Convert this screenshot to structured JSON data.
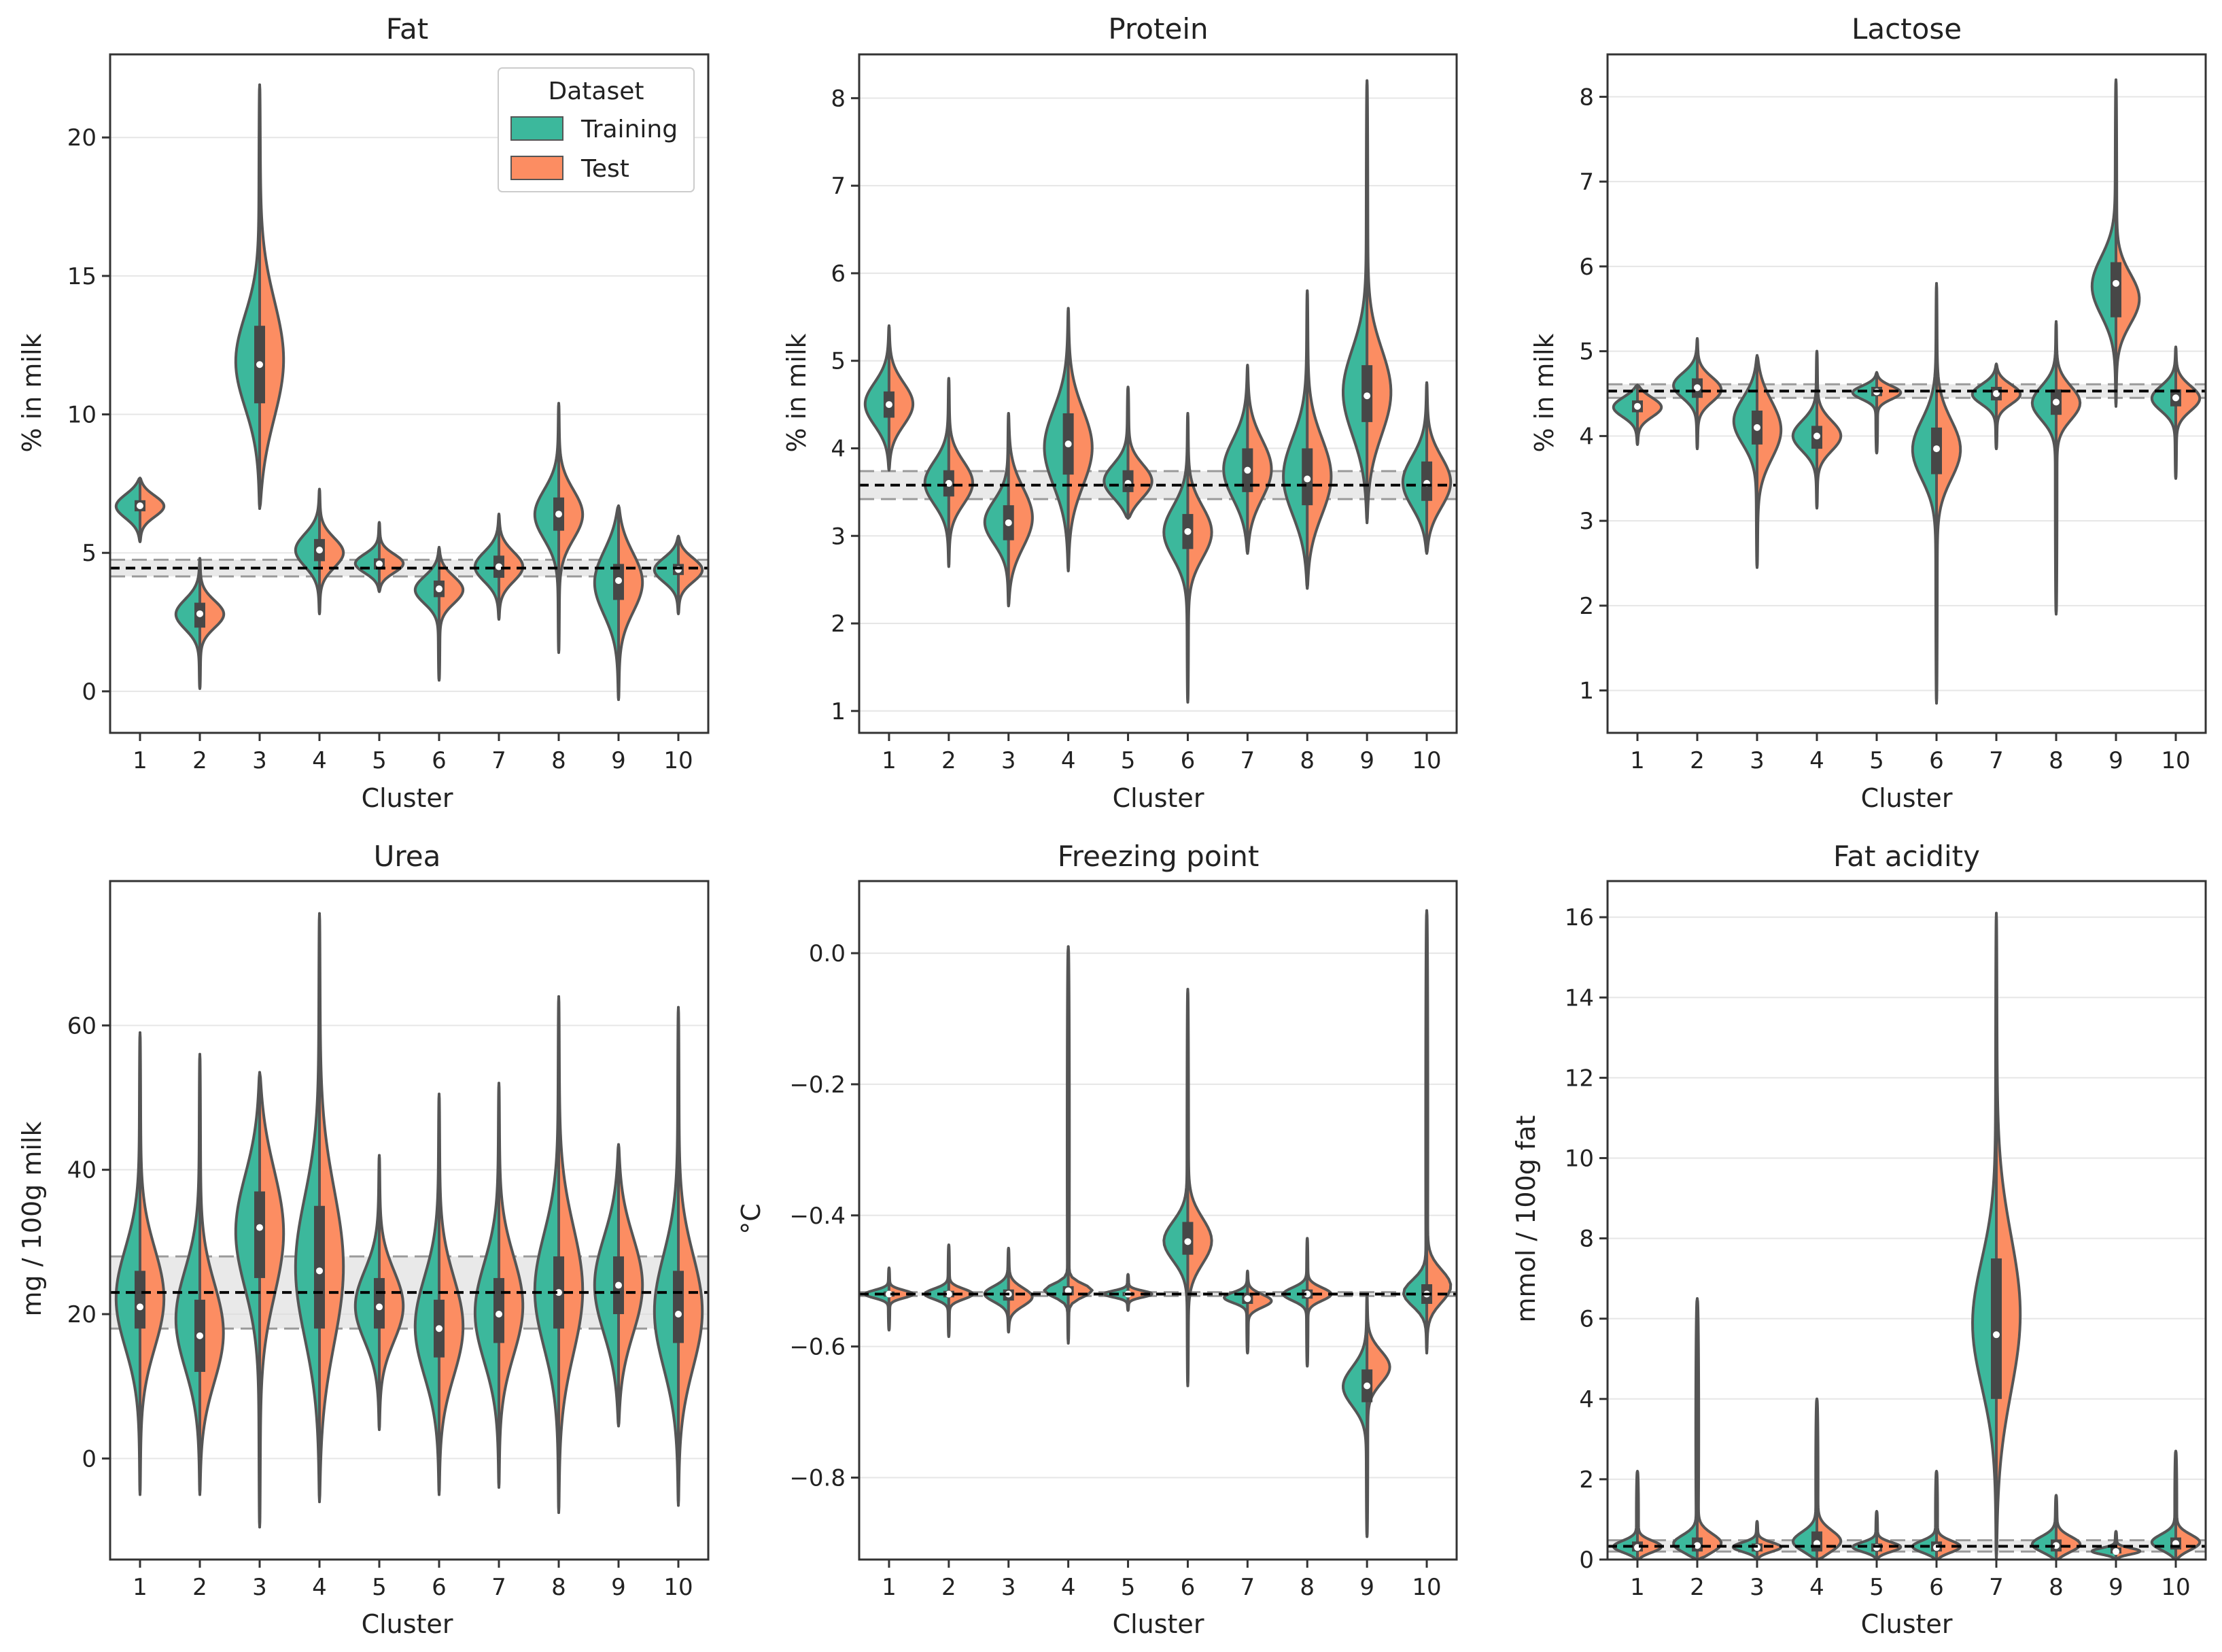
{
  "colors": {
    "training": "#3cb89c",
    "test": "#fc8d62",
    "outline": "#555555",
    "box": "#474747",
    "median": "#ffffff",
    "band": "#dddddd",
    "refline": "#000000",
    "grid": "#e6e6e6"
  },
  "legend": {
    "title": "Dataset",
    "entries": [
      "Training",
      "Test"
    ],
    "placement": "upper-right of first panel"
  },
  "chart_data": [
    {
      "type": "violin",
      "title": "Fat",
      "xlabel": "Cluster",
      "ylabel": "% in milk",
      "ylim": [
        -1.5,
        23
      ],
      "yticks": [
        0,
        5,
        10,
        15,
        20
      ],
      "yticklabels": [
        "0",
        "5",
        "10",
        "15",
        "20"
      ],
      "categories": [
        "1",
        "2",
        "3",
        "4",
        "5",
        "6",
        "7",
        "8",
        "9",
        "10"
      ],
      "reference": {
        "mean": 4.45,
        "low": 4.15,
        "high": 4.75
      },
      "clusters": [
        {
          "min": 5.4,
          "max": 7.7,
          "train_center": 6.7,
          "train_width": 0.45,
          "test_center": 6.7,
          "test_width": 0.4,
          "q1": 6.5,
          "median": 6.7,
          "q3": 6.9
        },
        {
          "min": 0.1,
          "max": 4.8,
          "train_center": 2.8,
          "train_width": 0.55,
          "test_center": 2.8,
          "test_width": 0.5,
          "q1": 2.3,
          "median": 2.8,
          "q3": 3.2
        },
        {
          "min": 6.6,
          "max": 21.9,
          "train_center": 11.8,
          "train_width": 1.7,
          "test_center": 11.8,
          "test_width": 2.2,
          "q1": 10.4,
          "median": 11.8,
          "q3": 13.2
        },
        {
          "min": 2.8,
          "max": 7.3,
          "train_center": 5.1,
          "train_width": 0.6,
          "test_center": 5.0,
          "test_width": 0.55,
          "q1": 4.7,
          "median": 5.1,
          "q3": 5.5
        },
        {
          "min": 3.6,
          "max": 6.1,
          "train_center": 4.6,
          "train_width": 0.35,
          "test_center": 4.6,
          "test_width": 0.35,
          "q1": 4.4,
          "median": 4.6,
          "q3": 4.8
        },
        {
          "min": 0.4,
          "max": 5.2,
          "train_center": 3.7,
          "train_width": 0.5,
          "test_center": 3.7,
          "test_width": 0.5,
          "q1": 3.4,
          "median": 3.7,
          "q3": 4.0
        },
        {
          "min": 2.6,
          "max": 6.4,
          "train_center": 4.5,
          "train_width": 0.55,
          "test_center": 4.5,
          "test_width": 0.55,
          "q1": 4.1,
          "median": 4.5,
          "q3": 4.9
        },
        {
          "min": 1.4,
          "max": 10.4,
          "train_center": 6.4,
          "train_width": 0.9,
          "test_center": 6.4,
          "test_width": 0.9,
          "q1": 5.8,
          "median": 6.4,
          "q3": 7.0
        },
        {
          "min": -0.3,
          "max": 6.7,
          "train_center": 4.0,
          "train_width": 1.2,
          "test_center": 4.0,
          "test_width": 1.1,
          "q1": 3.3,
          "median": 4.0,
          "q3": 4.6
        },
        {
          "min": 2.8,
          "max": 5.6,
          "train_center": 4.4,
          "train_width": 0.45,
          "test_center": 4.4,
          "test_width": 0.45,
          "q1": 4.2,
          "median": 4.4,
          "q3": 4.6
        }
      ]
    },
    {
      "type": "violin",
      "title": "Protein",
      "xlabel": "Cluster",
      "ylabel": "% in milk",
      "ylim": [
        0.75,
        8.5
      ],
      "yticks": [
        1,
        2,
        3,
        4,
        5,
        6,
        7,
        8
      ],
      "yticklabels": [
        "1",
        "2",
        "3",
        "4",
        "5",
        "6",
        "7",
        "8"
      ],
      "categories": [
        "1",
        "2",
        "3",
        "4",
        "5",
        "6",
        "7",
        "8",
        "9",
        "10"
      ],
      "reference": {
        "mean": 3.58,
        "low": 3.42,
        "high": 3.74
      },
      "clusters": [
        {
          "min": 3.75,
          "max": 5.4,
          "train_center": 4.5,
          "train_width": 0.25,
          "test_center": 4.5,
          "test_width": 0.25,
          "q1": 4.35,
          "median": 4.5,
          "q3": 4.65
        },
        {
          "min": 2.65,
          "max": 4.8,
          "train_center": 3.6,
          "train_width": 0.25,
          "test_center": 3.6,
          "test_width": 0.25,
          "q1": 3.45,
          "median": 3.6,
          "q3": 3.75
        },
        {
          "min": 2.2,
          "max": 4.4,
          "train_center": 3.15,
          "train_width": 0.25,
          "test_center": 3.2,
          "test_width": 0.35,
          "q1": 2.95,
          "median": 3.15,
          "q3": 3.35
        },
        {
          "min": 2.6,
          "max": 5.6,
          "train_center": 4.0,
          "train_width": 0.45,
          "test_center": 4.0,
          "test_width": 0.45,
          "q1": 3.7,
          "median": 4.05,
          "q3": 4.4
        },
        {
          "min": 3.2,
          "max": 4.7,
          "train_center": 3.6,
          "train_width": 0.2,
          "test_center": 3.6,
          "test_width": 0.2,
          "q1": 3.5,
          "median": 3.6,
          "q3": 3.75
        },
        {
          "min": 1.1,
          "max": 4.4,
          "train_center": 3.05,
          "train_width": 0.3,
          "test_center": 3.05,
          "test_width": 0.3,
          "q1": 2.85,
          "median": 3.05,
          "q3": 3.25
        },
        {
          "min": 2.8,
          "max": 4.95,
          "train_center": 3.75,
          "train_width": 0.35,
          "test_center": 3.75,
          "test_width": 0.35,
          "q1": 3.5,
          "median": 3.75,
          "q3": 4.0
        },
        {
          "min": 2.4,
          "max": 5.8,
          "train_center": 3.65,
          "train_width": 0.45,
          "test_center": 3.65,
          "test_width": 0.45,
          "q1": 3.35,
          "median": 3.65,
          "q3": 4.0
        },
        {
          "min": 3.15,
          "max": 8.2,
          "train_center": 4.6,
          "train_width": 0.5,
          "test_center": 4.6,
          "test_width": 0.5,
          "q1": 4.3,
          "median": 4.6,
          "q3": 4.95
        },
        {
          "min": 2.8,
          "max": 4.75,
          "train_center": 3.6,
          "train_width": 0.3,
          "test_center": 3.6,
          "test_width": 0.3,
          "q1": 3.4,
          "median": 3.6,
          "q3": 3.85
        }
      ]
    },
    {
      "type": "violin",
      "title": "Lactose",
      "xlabel": "Cluster",
      "ylabel": "% in milk",
      "ylim": [
        0.5,
        8.5
      ],
      "yticks": [
        1,
        2,
        3,
        4,
        5,
        6,
        7,
        8
      ],
      "yticklabels": [
        "1",
        "2",
        "3",
        "4",
        "5",
        "6",
        "7",
        "8"
      ],
      "categories": [
        "1",
        "2",
        "3",
        "4",
        "5",
        "6",
        "7",
        "8",
        "9",
        "10"
      ],
      "reference": {
        "mean": 4.53,
        "low": 4.45,
        "high": 4.61
      },
      "clusters": [
        {
          "min": 3.9,
          "max": 4.6,
          "train_center": 4.35,
          "train_width": 0.12,
          "test_center": 4.35,
          "test_width": 0.12,
          "q1": 4.28,
          "median": 4.35,
          "q3": 4.42
        },
        {
          "min": 3.85,
          "max": 5.15,
          "train_center": 4.6,
          "train_width": 0.15,
          "test_center": 4.55,
          "test_width": 0.15,
          "q1": 4.45,
          "median": 4.57,
          "q3": 4.68
        },
        {
          "min": 2.45,
          "max": 4.95,
          "train_center": 4.2,
          "train_width": 0.28,
          "test_center": 4.1,
          "test_width": 0.35,
          "q1": 3.9,
          "median": 4.1,
          "q3": 4.3
        },
        {
          "min": 3.15,
          "max": 5.0,
          "train_center": 4.0,
          "train_width": 0.18,
          "test_center": 4.0,
          "test_width": 0.18,
          "q1": 3.85,
          "median": 4.0,
          "q3": 4.12
        },
        {
          "min": 3.8,
          "max": 4.75,
          "train_center": 4.52,
          "train_width": 0.08,
          "test_center": 4.52,
          "test_width": 0.08,
          "q1": 4.47,
          "median": 4.52,
          "q3": 4.58
        },
        {
          "min": 0.85,
          "max": 5.8,
          "train_center": 3.85,
          "train_width": 0.35,
          "test_center": 3.85,
          "test_width": 0.35,
          "q1": 3.55,
          "median": 3.85,
          "q3": 4.1
        },
        {
          "min": 3.85,
          "max": 4.85,
          "train_center": 4.5,
          "train_width": 0.12,
          "test_center": 4.5,
          "test_width": 0.12,
          "q1": 4.42,
          "median": 4.5,
          "q3": 4.58
        },
        {
          "min": 1.9,
          "max": 5.35,
          "train_center": 4.4,
          "train_width": 0.2,
          "test_center": 4.4,
          "test_width": 0.2,
          "q1": 4.25,
          "median": 4.4,
          "q3": 4.55
        },
        {
          "min": 4.35,
          "max": 8.2,
          "train_center": 5.75,
          "train_width": 0.35,
          "test_center": 5.6,
          "test_width": 0.3,
          "q1": 5.4,
          "median": 5.8,
          "q3": 6.05
        },
        {
          "min": 3.5,
          "max": 5.05,
          "train_center": 4.45,
          "train_width": 0.15,
          "test_center": 4.45,
          "test_width": 0.15,
          "q1": 4.35,
          "median": 4.45,
          "q3": 4.55
        }
      ]
    },
    {
      "type": "violin",
      "title": "Urea",
      "xlabel": "Cluster",
      "ylabel": "mg / 100g milk",
      "ylim": [
        -14,
        80
      ],
      "yticks": [
        0,
        20,
        40,
        60
      ],
      "yticklabels": [
        "0",
        "20",
        "40",
        "60"
      ],
      "categories": [
        "1",
        "2",
        "3",
        "4",
        "5",
        "6",
        "7",
        "8",
        "9",
        "10"
      ],
      "reference": {
        "mean": 23,
        "low": 18,
        "high": 28
      },
      "clusters": [
        {
          "min": -5,
          "max": 59,
          "train_center": 22,
          "train_width": 7,
          "test_center": 22,
          "test_width": 7,
          "q1": 18,
          "median": 21,
          "q3": 26
        },
        {
          "min": -5,
          "max": 56,
          "train_center": 19,
          "train_width": 7,
          "test_center": 17,
          "test_width": 7,
          "q1": 12,
          "median": 17,
          "q3": 22
        },
        {
          "min": -9.5,
          "max": 53.5,
          "train_center": 32,
          "train_width": 8,
          "test_center": 32,
          "test_width": 9,
          "q1": 25,
          "median": 32,
          "q3": 37
        },
        {
          "min": -6,
          "max": 75.5,
          "train_center": 26,
          "train_width": 10,
          "test_center": 26,
          "test_width": 11,
          "q1": 18,
          "median": 26,
          "q3": 35
        },
        {
          "min": 4,
          "max": 42,
          "train_center": 21,
          "train_width": 5,
          "test_center": 21,
          "test_width": 5,
          "q1": 18,
          "median": 21,
          "q3": 25
        },
        {
          "min": -5,
          "max": 50.5,
          "train_center": 18,
          "train_width": 7,
          "test_center": 18,
          "test_width": 7,
          "q1": 14,
          "median": 18,
          "q3": 22
        },
        {
          "min": -4,
          "max": 52,
          "train_center": 20,
          "train_width": 7,
          "test_center": 21,
          "test_width": 7,
          "q1": 16,
          "median": 20,
          "q3": 25
        },
        {
          "min": -7.5,
          "max": 64,
          "train_center": 23,
          "train_width": 8,
          "test_center": 23,
          "test_width": 9,
          "q1": 18,
          "median": 23,
          "q3": 28
        },
        {
          "min": 4.5,
          "max": 43.5,
          "train_center": 24,
          "train_width": 7,
          "test_center": 24,
          "test_width": 7,
          "q1": 20,
          "median": 24,
          "q3": 28
        },
        {
          "min": -6.5,
          "max": 62.5,
          "train_center": 20,
          "train_width": 8,
          "test_center": 20,
          "test_width": 8,
          "q1": 16,
          "median": 20,
          "q3": 26
        }
      ]
    },
    {
      "type": "violin",
      "title": "Freezing point",
      "xlabel": "Cluster",
      "ylabel": "°C",
      "ylim": [
        -0.925,
        0.11
      ],
      "yticks": [
        -0.8,
        -0.6,
        -0.4,
        -0.2,
        0.0
      ],
      "yticklabels": [
        "−0.8",
        "−0.6",
        "−0.4",
        "−0.2",
        "0.0"
      ],
      "categories": [
        "1",
        "2",
        "3",
        "4",
        "5",
        "6",
        "7",
        "8",
        "9",
        "10"
      ],
      "reference": {
        "mean": -0.52,
        "low": -0.523,
        "high": -0.517
      },
      "clusters": [
        {
          "min": -0.575,
          "max": -0.48,
          "train_center": -0.52,
          "train_width": 0.006,
          "test_center": -0.52,
          "test_width": 0.006,
          "q1": -0.524,
          "median": -0.52,
          "q3": -0.516
        },
        {
          "min": -0.585,
          "max": -0.445,
          "train_center": -0.52,
          "train_width": 0.008,
          "test_center": -0.52,
          "test_width": 0.008,
          "q1": -0.525,
          "median": -0.52,
          "q3": -0.515
        },
        {
          "min": -0.578,
          "max": -0.45,
          "train_center": -0.52,
          "train_width": 0.012,
          "test_center": -0.525,
          "test_width": 0.014,
          "q1": -0.53,
          "median": -0.52,
          "q3": -0.513
        },
        {
          "min": -0.595,
          "max": 0.01,
          "train_center": -0.515,
          "train_width": 0.01,
          "test_center": -0.515,
          "test_width": 0.01,
          "q1": -0.522,
          "median": -0.515,
          "q3": -0.508
        },
        {
          "min": -0.545,
          "max": -0.49,
          "train_center": -0.52,
          "train_width": 0.005,
          "test_center": -0.52,
          "test_width": 0.005,
          "q1": -0.523,
          "median": -0.52,
          "q3": -0.517
        },
        {
          "min": -0.66,
          "max": -0.055,
          "train_center": -0.44,
          "train_width": 0.03,
          "test_center": -0.44,
          "test_width": 0.035,
          "q1": -0.46,
          "median": -0.44,
          "q3": -0.41
        },
        {
          "min": -0.61,
          "max": -0.485,
          "train_center": -0.525,
          "train_width": 0.008,
          "test_center": -0.53,
          "test_width": 0.01,
          "q1": -0.535,
          "median": -0.527,
          "q3": -0.518
        },
        {
          "min": -0.63,
          "max": -0.435,
          "train_center": -0.52,
          "train_width": 0.01,
          "test_center": -0.52,
          "test_width": 0.01,
          "q1": -0.527,
          "median": -0.52,
          "q3": -0.513
        },
        {
          "min": -0.89,
          "max": -0.52,
          "train_center": -0.66,
          "train_width": 0.03,
          "test_center": -0.63,
          "test_width": 0.025,
          "q1": -0.685,
          "median": -0.66,
          "q3": -0.635
        },
        {
          "min": -0.61,
          "max": 0.065,
          "train_center": -0.52,
          "train_width": 0.02,
          "test_center": -0.51,
          "test_width": 0.025,
          "q1": -0.535,
          "median": -0.52,
          "q3": -0.505
        }
      ]
    },
    {
      "type": "violin",
      "title": "Fat acidity",
      "xlabel": "Cluster",
      "ylabel": "mmol / 100g fat",
      "ylim": [
        0,
        16.9
      ],
      "yticks": [
        0,
        2,
        4,
        6,
        8,
        10,
        12,
        14,
        16
      ],
      "yticklabels": [
        "0",
        "2",
        "4",
        "6",
        "8",
        "10",
        "12",
        "14",
        "16"
      ],
      "categories": [
        "1",
        "2",
        "3",
        "4",
        "5",
        "6",
        "7",
        "8",
        "9",
        "10"
      ],
      "reference": {
        "mean": 0.33,
        "low": 0.2,
        "high": 0.48
      },
      "clusters": [
        {
          "min": 0.0,
          "max": 2.2,
          "train_center": 0.3,
          "train_width": 0.15,
          "test_center": 0.3,
          "test_width": 0.15,
          "q1": 0.2,
          "median": 0.3,
          "q3": 0.45
        },
        {
          "min": 0.0,
          "max": 6.5,
          "train_center": 0.35,
          "train_width": 0.22,
          "test_center": 0.35,
          "test_width": 0.25,
          "q1": 0.2,
          "median": 0.35,
          "q3": 0.55
        },
        {
          "min": 0.0,
          "max": 0.95,
          "train_center": 0.3,
          "train_width": 0.12,
          "test_center": 0.3,
          "test_width": 0.12,
          "q1": 0.2,
          "median": 0.3,
          "q3": 0.4
        },
        {
          "min": 0.0,
          "max": 4.0,
          "train_center": 0.4,
          "train_width": 0.25,
          "test_center": 0.4,
          "test_width": 0.28,
          "q1": 0.2,
          "median": 0.4,
          "q3": 0.7
        },
        {
          "min": 0.0,
          "max": 1.2,
          "train_center": 0.3,
          "train_width": 0.12,
          "test_center": 0.3,
          "test_width": 0.12,
          "q1": 0.2,
          "median": 0.3,
          "q3": 0.4
        },
        {
          "min": 0.0,
          "max": 2.2,
          "train_center": 0.3,
          "train_width": 0.15,
          "test_center": 0.3,
          "test_width": 0.15,
          "q1": 0.2,
          "median": 0.3,
          "q3": 0.45
        },
        {
          "min": 0.0,
          "max": 16.1,
          "train_center": 5.8,
          "train_width": 1.6,
          "test_center": 6.0,
          "test_width": 2.0,
          "q1": 4.0,
          "median": 5.6,
          "q3": 7.5
        },
        {
          "min": 0.0,
          "max": 1.6,
          "train_center": 0.35,
          "train_width": 0.2,
          "test_center": 0.35,
          "test_width": 0.2,
          "q1": 0.2,
          "median": 0.35,
          "q3": 0.5
        },
        {
          "min": 0.0,
          "max": 0.7,
          "train_center": 0.2,
          "train_width": 0.08,
          "test_center": 0.2,
          "test_width": 0.08,
          "q1": 0.15,
          "median": 0.2,
          "q3": 0.3
        },
        {
          "min": 0.0,
          "max": 2.7,
          "train_center": 0.4,
          "train_width": 0.2,
          "test_center": 0.4,
          "test_width": 0.2,
          "q1": 0.25,
          "median": 0.4,
          "q3": 0.55
        }
      ]
    }
  ]
}
